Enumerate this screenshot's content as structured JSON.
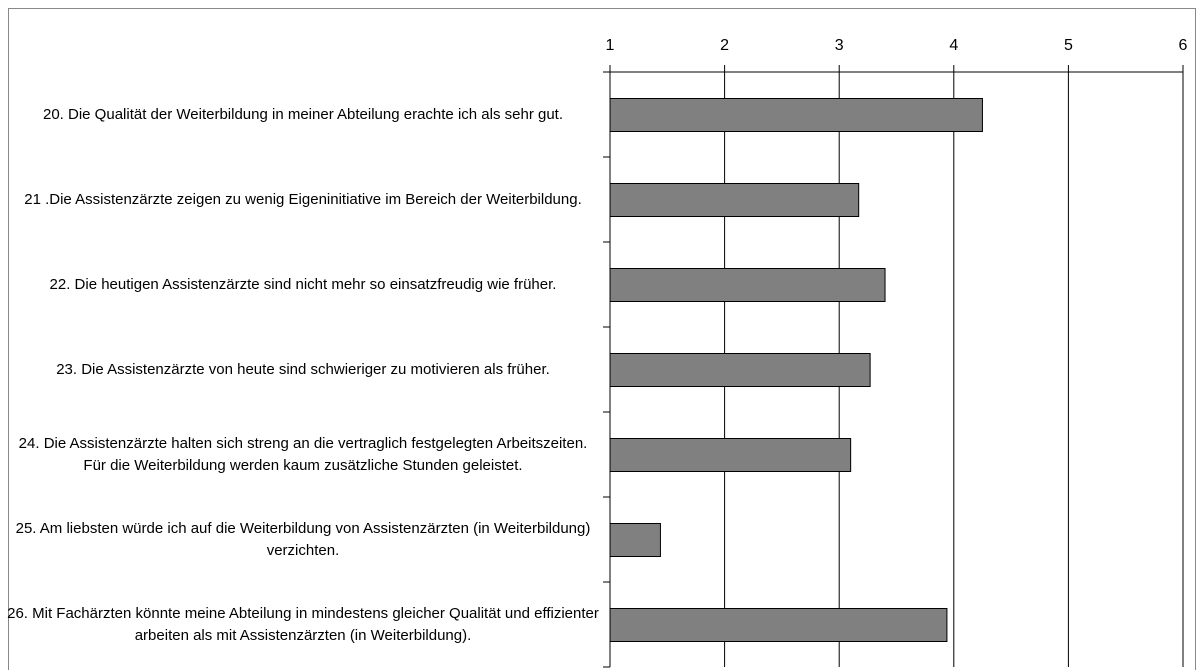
{
  "chart_data": {
    "type": "bar",
    "orientation": "horizontal",
    "categories": [
      "20. Die Qualität der Weiterbildung in meiner Abteilung erachte ich als sehr gut.",
      "21 .Die Assistenzärzte zeigen zu wenig Eigeninitiative im Bereich der Weiterbildung.",
      "22. Die heutigen Assistenzärzte sind nicht mehr so einsatzfreudig wie früher.",
      "23. Die Assistenzärzte von heute sind schwieriger zu motivieren als früher.",
      "24. Die Assistenzärzte halten sich streng an die vertraglich festgelegten Arbeitszeiten. Für die Weiterbildung werden kaum zusätzliche Stunden geleistet.",
      "25. Am liebsten würde ich auf die Weiterbildung von Assistenzärzten (in Weiterbildung) verzichten.",
      "26. Mit Fachärzten könnte meine Abteilung in mindestens gleicher Qualität und effizienter arbeiten als mit Assistenzärzten (in Weiterbildung)."
    ],
    "values": [
      4.25,
      3.17,
      3.4,
      3.27,
      3.1,
      1.44,
      3.94
    ],
    "color": "#808080",
    "xlim": [
      1,
      6
    ],
    "xticks": [
      1,
      2,
      3,
      4,
      5,
      6
    ],
    "grid": true
  }
}
